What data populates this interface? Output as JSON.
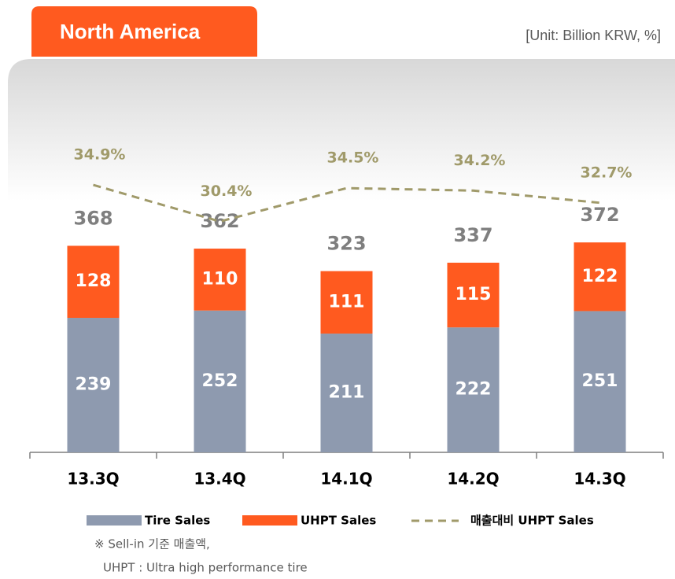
{
  "header": {
    "title": "North America",
    "unit": "[Unit: Billion KRW, %]"
  },
  "chart_data": {
    "type": "bar",
    "stacked": true,
    "categories": [
      "13.3Q",
      "13.4Q",
      "14.1Q",
      "14.2Q",
      "14.3Q"
    ],
    "series": [
      {
        "name": "Tire Sales",
        "color": "#8e9aaf",
        "values": [
          239,
          252,
          211,
          222,
          251
        ]
      },
      {
        "name": "UHPT Sales",
        "color": "#ff5a1f",
        "values": [
          128,
          110,
          111,
          115,
          122
        ]
      },
      {
        "name": "매출대비 UHPT Sales",
        "type": "line",
        "dashed": true,
        "axis": "y2",
        "color": "#a09a6a",
        "values": [
          34.9,
          30.4,
          34.5,
          34.2,
          32.7
        ],
        "value_labels": [
          "34.9%",
          "30.4%",
          "34.5%",
          "34.2%",
          "32.7%"
        ]
      }
    ],
    "totals": [
      368,
      362,
      323,
      337,
      372
    ],
    "ylim": [
      0,
      650
    ],
    "y2lim": [
      2,
      47
    ]
  },
  "notes": [
    "※ Sell-in 기준 매출액,",
    "UHPT : Ultra high performance tire"
  ]
}
